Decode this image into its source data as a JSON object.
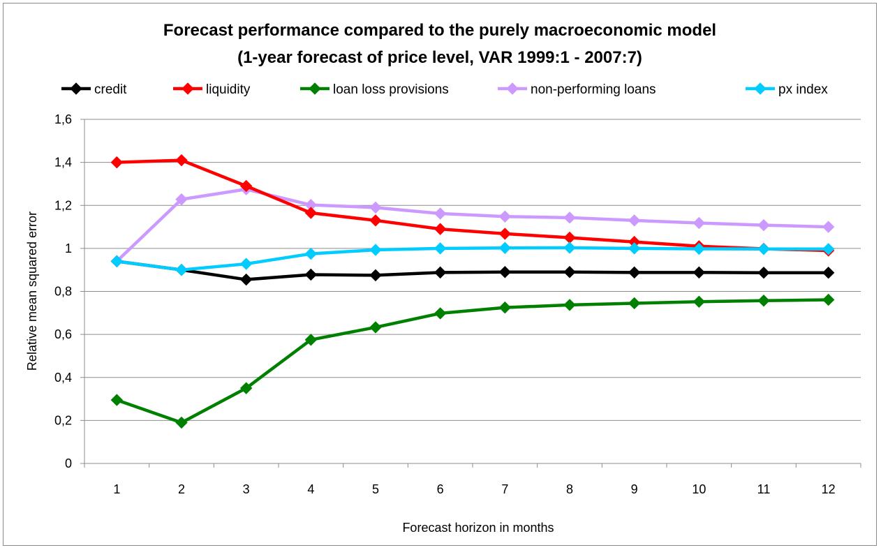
{
  "chart_data": {
    "type": "line",
    "title_lines": [
      "Forecast performance  compared to the purely macroeconomic model",
      "(1-year forecast of price level, VAR 1999:1 - 2007:7)"
    ],
    "xlabel": "Forecast horizon in months",
    "ylabel": "Relative mean squared error",
    "x": [
      1,
      2,
      3,
      4,
      5,
      6,
      7,
      8,
      9,
      10,
      11,
      12
    ],
    "x_tick_labels": [
      "1",
      "2",
      "3",
      "4",
      "5",
      "6",
      "7",
      "8",
      "9",
      "10",
      "11",
      "12"
    ],
    "ylim": [
      0,
      1.6
    ],
    "y_ticks": [
      0,
      0.2,
      0.4,
      0.6,
      0.8,
      1,
      1.2,
      1.4,
      1.6
    ],
    "y_tick_labels": [
      "0",
      "0,2",
      "0,4",
      "0,6",
      "0,8",
      "1",
      "1,2",
      "1,4",
      "1,6"
    ],
    "grid": "horizontal",
    "legend_position": "top",
    "marker": "diamond",
    "series": [
      {
        "name": "credit",
        "color": "#000000",
        "values": [
          0.94,
          0.9,
          0.855,
          0.878,
          0.875,
          0.888,
          0.89,
          0.89,
          0.888,
          0.888,
          0.887,
          0.887
        ]
      },
      {
        "name": "liquidity",
        "color": "#ff0000",
        "values": [
          1.4,
          1.41,
          1.29,
          1.165,
          1.13,
          1.09,
          1.068,
          1.05,
          1.03,
          1.01,
          0.998,
          0.99
        ]
      },
      {
        "name": "loan loss provisions",
        "color": "#008000",
        "values": [
          0.295,
          0.19,
          0.35,
          0.575,
          0.633,
          0.698,
          0.725,
          0.737,
          0.745,
          0.752,
          0.757,
          0.761
        ]
      },
      {
        "name": "non-performing loans",
        "color": "#cc99ff",
        "values": [
          0.94,
          1.228,
          1.275,
          1.202,
          1.19,
          1.162,
          1.148,
          1.143,
          1.13,
          1.118,
          1.108,
          1.1
        ]
      },
      {
        "name": "px index",
        "color": "#00ccff",
        "values": [
          0.94,
          0.9,
          0.928,
          0.975,
          0.993,
          1.0,
          1.002,
          1.003,
          1.0,
          0.998,
          0.997,
          0.997
        ]
      }
    ]
  }
}
